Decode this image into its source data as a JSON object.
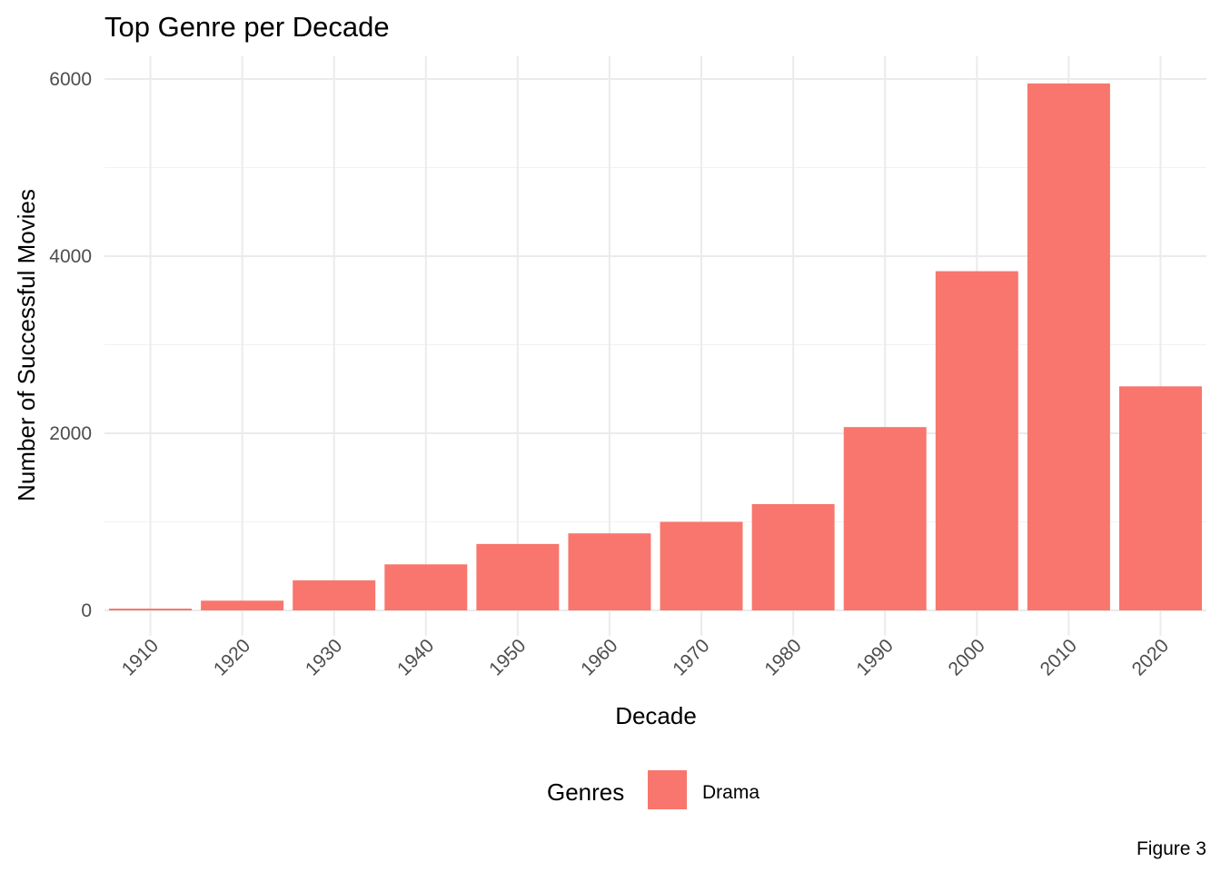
{
  "chart_data": {
    "type": "bar",
    "title": "Top Genre per Decade",
    "xlabel": "Decade",
    "ylabel": "Number of Successful Movies",
    "categories": [
      "1910",
      "1920",
      "1930",
      "1940",
      "1950",
      "1960",
      "1970",
      "1980",
      "1990",
      "2000",
      "2010",
      "2020"
    ],
    "series": [
      {
        "name": "Drama",
        "color": "#F8766D",
        "values": [
          20,
          110,
          340,
          520,
          750,
          870,
          1000,
          1200,
          2070,
          3830,
          5950,
          2530
        ]
      }
    ],
    "ylim": [
      0,
      6100
    ],
    "yticks": [
      0,
      2000,
      4000,
      6000
    ],
    "ytick_labels": [
      "0",
      "2000",
      "4000",
      "6000"
    ],
    "y_minor_ticks": [
      1000,
      3000,
      5000
    ],
    "grid": true,
    "legend": {
      "title": "Genres",
      "placement": "bottom"
    },
    "caption": "Figure 3"
  }
}
